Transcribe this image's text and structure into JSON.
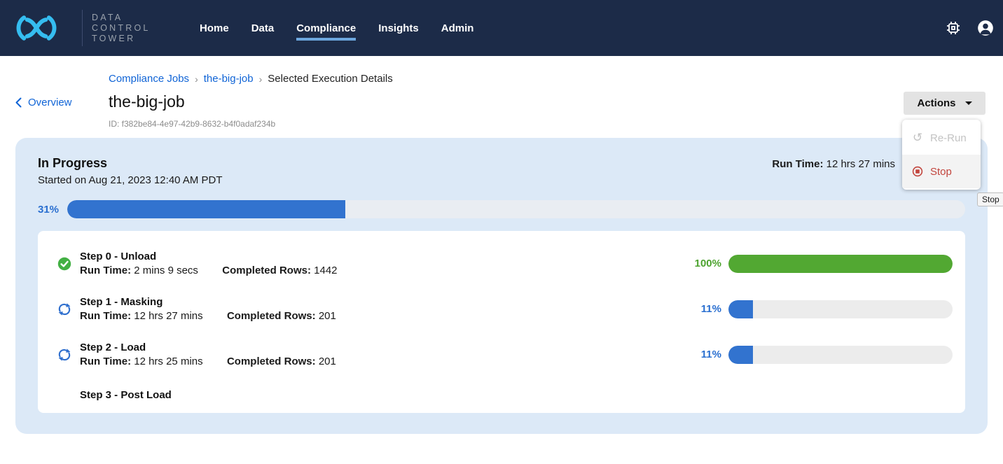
{
  "nav": {
    "brand_lines": [
      "DATA",
      "CONTROL",
      "TOWER"
    ],
    "items": [
      {
        "label": "Home",
        "active": false
      },
      {
        "label": "Data",
        "active": false
      },
      {
        "label": "Compliance",
        "active": true
      },
      {
        "label": "Insights",
        "active": false
      },
      {
        "label": "Admin",
        "active": false
      }
    ],
    "right_icons": [
      "chip-icon",
      "user-icon"
    ]
  },
  "header": {
    "back_link_label": "Overview",
    "breadcrumb": [
      {
        "label": "Compliance Jobs",
        "link": true
      },
      {
        "label": "the-big-job",
        "link": true
      },
      {
        "label": "Selected Execution Details",
        "link": false
      }
    ],
    "title": "the-big-job",
    "id_text": "ID: f382be84-4e97-42b9-8632-b4f0adaf234b",
    "actions_label": "Actions"
  },
  "actions_menu": {
    "items": [
      {
        "label": "Re-Run",
        "icon": "rerun-icon",
        "disabled": true
      },
      {
        "label": "Stop",
        "icon": "stop-icon",
        "disabled": false
      }
    ],
    "tooltip": "Stop"
  },
  "execution": {
    "status": "In Progress",
    "started_text": "Started on Aug 21, 2023 12:40 AM PDT",
    "run_time_label": "Run Time:",
    "run_time_value": "12 hrs 27 mins",
    "overall_percent_label": "31%",
    "overall_percent_value": 31
  },
  "labels": {
    "run_time": "Run Time:",
    "completed_rows": "Completed Rows:"
  },
  "steps": [
    {
      "title": "Step 0 - Unload",
      "run_time": "2 mins 9 secs",
      "completed_rows": "1442",
      "percent_label": "100%",
      "percent_value": 100,
      "state": "complete",
      "icon": "check-circle-icon"
    },
    {
      "title": "Step 1 - Masking",
      "run_time": "12 hrs 27 mins",
      "completed_rows": "201",
      "percent_label": "11%",
      "percent_value": 11,
      "state": "running",
      "icon": "sync-icon"
    },
    {
      "title": "Step 2 - Load",
      "run_time": "12 hrs 25 mins",
      "completed_rows": "201",
      "percent_label": "11%",
      "percent_value": 11,
      "state": "running",
      "icon": "sync-icon"
    },
    {
      "title": "Step 3 - Post Load",
      "state": "pending",
      "icon": null
    }
  ],
  "colors": {
    "nav_bg": "#1c2b48",
    "brand_cyan": "#35bdf0",
    "nav_active_underline": "#6ca6dd",
    "link_blue": "#1064d6",
    "progress_blue": "#3273cf",
    "success_green": "#52a832",
    "danger_red": "#c2453d",
    "card_bg": "#dce9f7",
    "track_gray": "#ececec"
  }
}
